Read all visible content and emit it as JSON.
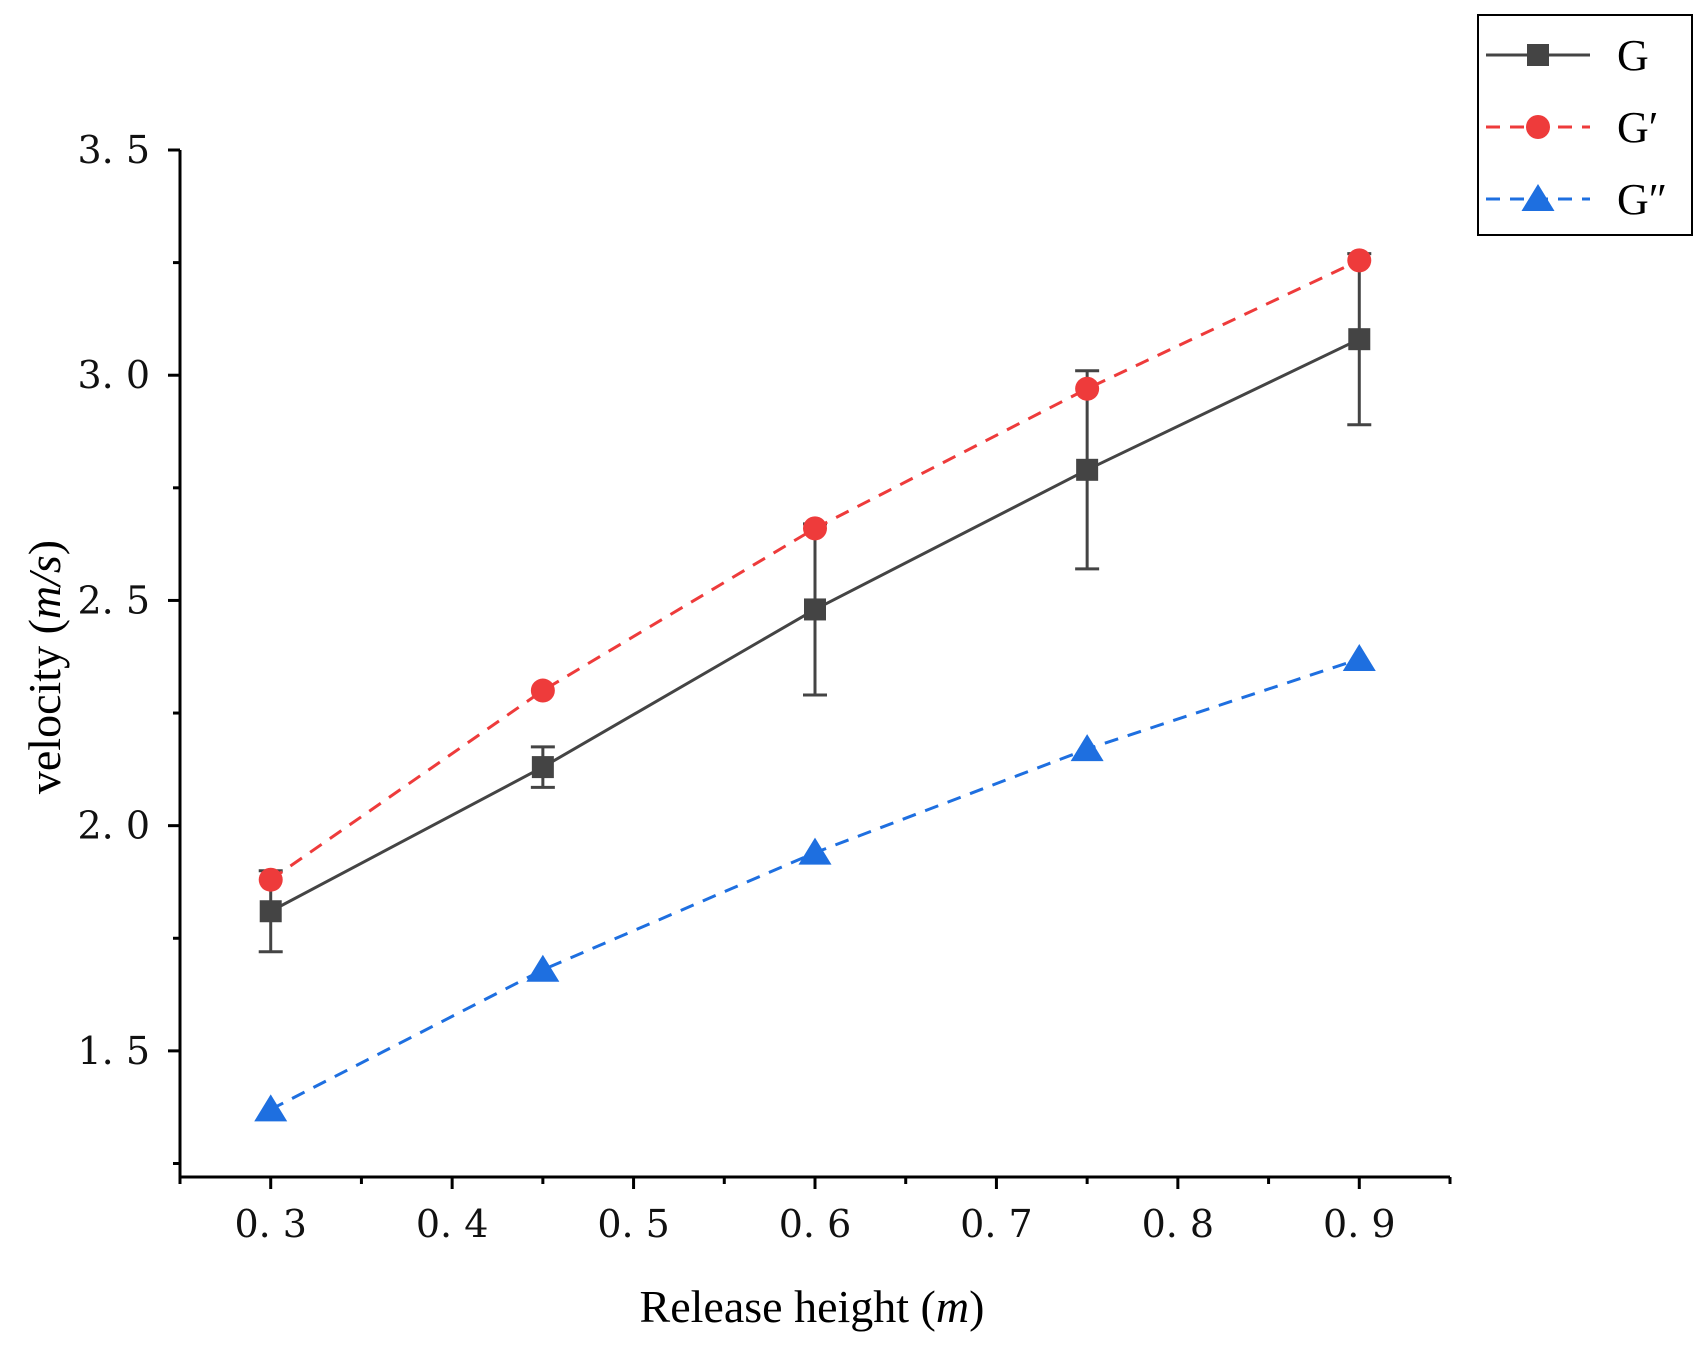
{
  "chart_data": {
    "type": "line",
    "title": "",
    "xlabel_plain": "Release height (",
    "xlabel_italic": "m",
    "xlabel_close": ")",
    "ylabel_plain": "velocity (",
    "ylabel_italic": "m/s",
    "ylabel_close": ")",
    "xlim": [
      0.25,
      0.95
    ],
    "ylim": [
      1.22,
      3.5
    ],
    "x_ticks": [
      0.3,
      0.4,
      0.5,
      0.6,
      0.7,
      0.8,
      0.9
    ],
    "x_tick_labels": [
      "0. 3",
      "0. 4",
      "0. 5",
      "0. 6",
      "0. 7",
      "0. 8",
      "0. 9"
    ],
    "y_ticks": [
      1.5,
      2.0,
      2.5,
      3.0,
      3.5
    ],
    "y_tick_labels": [
      "1. 5",
      "2. 0",
      "2. 5",
      "3. 0",
      "3. 5"
    ],
    "grid": false,
    "legend_position": "top-right outside",
    "series": [
      {
        "name": "G",
        "color": "#444444",
        "marker": "square",
        "line_style": "solid",
        "x": [
          0.3,
          0.45,
          0.6,
          0.75,
          0.9
        ],
        "values": [
          1.81,
          2.13,
          2.48,
          2.79,
          3.08
        ],
        "error": [
          0.09,
          0.045,
          0.19,
          0.22,
          0.19
        ]
      },
      {
        "name": "G′",
        "color": "#ee3b3b",
        "marker": "circle",
        "line_style": "dashed",
        "x": [
          0.3,
          0.45,
          0.6,
          0.75,
          0.9
        ],
        "values": [
          1.88,
          2.3,
          2.66,
          2.97,
          3.255
        ]
      },
      {
        "name": "G″",
        "color": "#1e6fe0",
        "marker": "triangle",
        "line_style": "dashed",
        "x": [
          0.3,
          0.45,
          0.6,
          0.75,
          0.9
        ],
        "values": [
          1.37,
          1.68,
          1.94,
          2.17,
          2.37
        ]
      }
    ]
  }
}
